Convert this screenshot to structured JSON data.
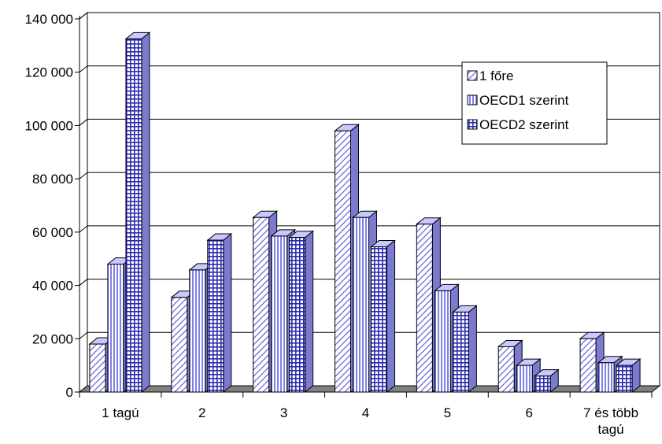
{
  "chart_data": {
    "type": "bar",
    "style": "3d-clustered-column",
    "categories": [
      [
        "1 tagú"
      ],
      [
        "2"
      ],
      [
        "3"
      ],
      [
        "4"
      ],
      [
        "5"
      ],
      [
        "6"
      ],
      [
        "7 és több",
        "tagú"
      ]
    ],
    "series": [
      {
        "name": "1 főre",
        "pattern": "diagonal-hatch",
        "values": [
          18000,
          35500,
          65500,
          98000,
          63000,
          17000,
          20000
        ]
      },
      {
        "name": "OECD1 szerint",
        "pattern": "vertical-stripes",
        "values": [
          48000,
          45800,
          58500,
          65500,
          38000,
          10000,
          11000
        ]
      },
      {
        "name": "OECD2 szerint",
        "pattern": "grid",
        "values": [
          132500,
          57000,
          58000,
          54500,
          30000,
          6000,
          10000
        ]
      }
    ],
    "ylim": [
      0,
      140000
    ],
    "yticks": [
      "0",
      "20 000",
      "40 000",
      "60 000",
      "80 000",
      "100 000",
      "120 000",
      "140 000"
    ],
    "grid": true,
    "legend": "top-right inside plot",
    "title": "",
    "xlabel": "",
    "ylabel": ""
  },
  "colors": {
    "bar_fill": "#9999ff",
    "bar_top": "#c8c8ff",
    "bar_side": "#7a7ad0",
    "floor": "#808080",
    "outline": "#000000"
  }
}
